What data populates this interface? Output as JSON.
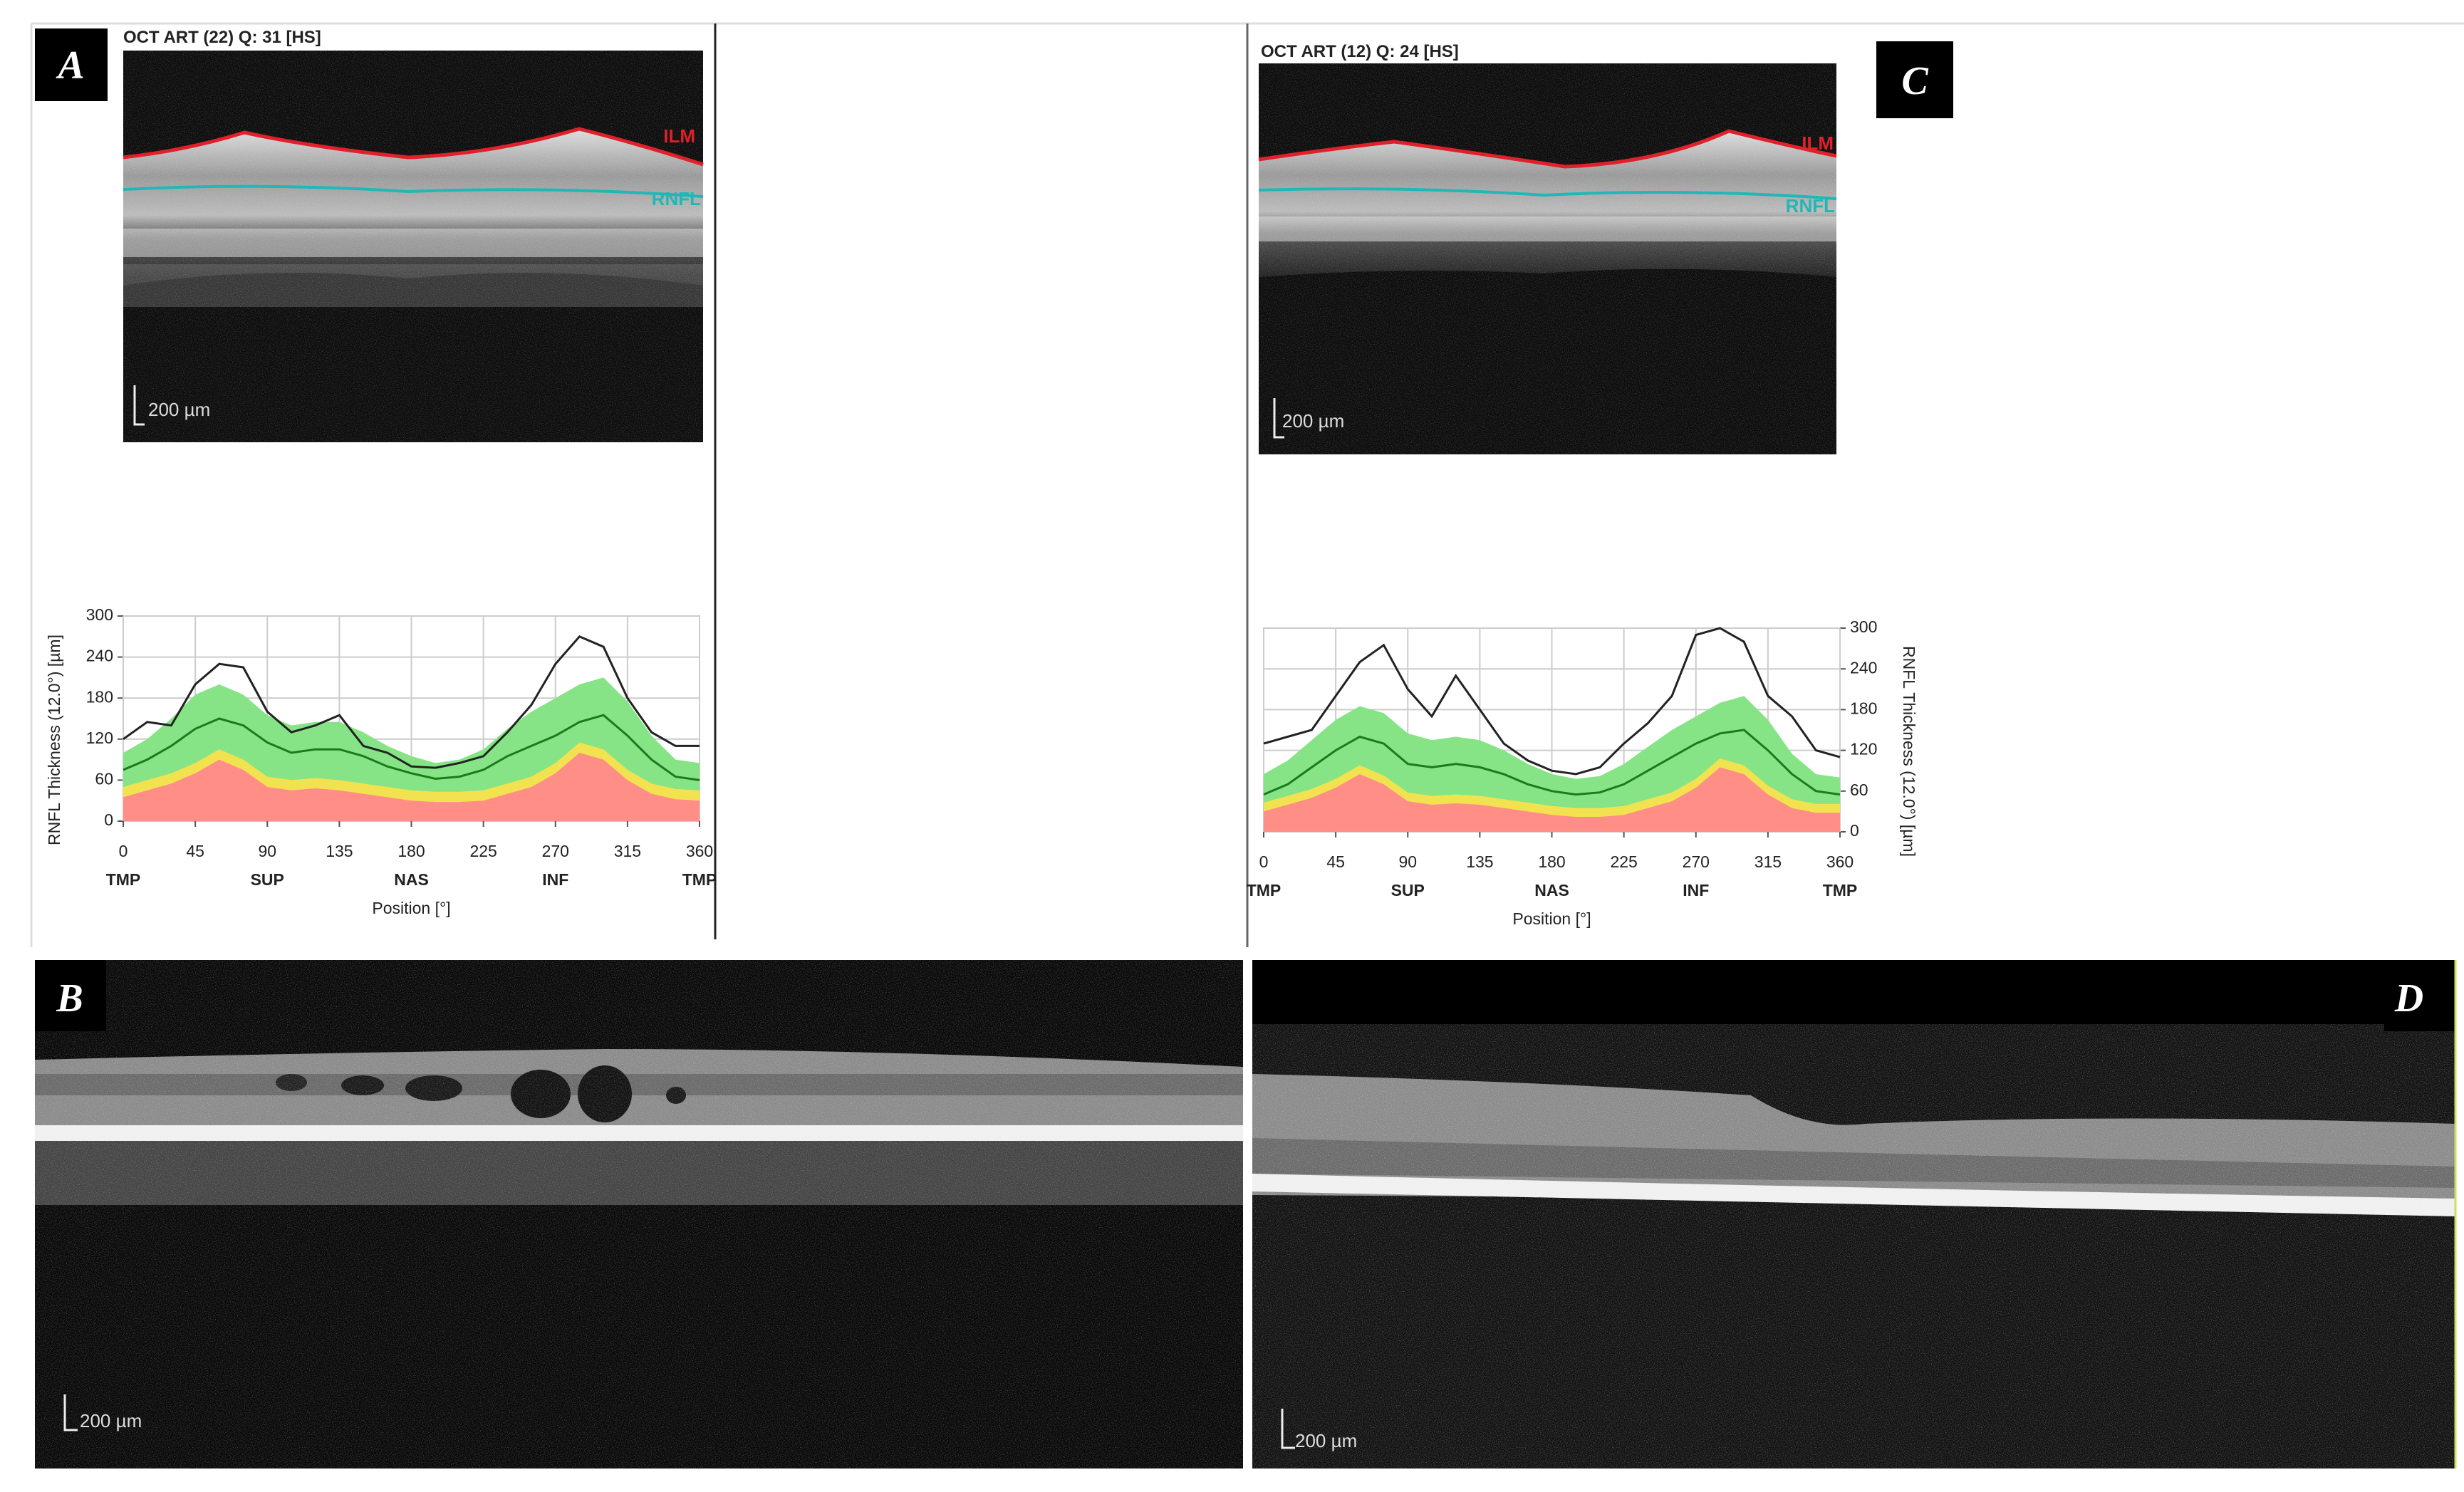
{
  "panels": {
    "A": {
      "label": "A",
      "header": "OCT ART (22) Q: 31 [HS]",
      "ilm": "ILM",
      "rnfl": "RNFL",
      "scale": "200 µm"
    },
    "B": {
      "label": "B",
      "scale": "200 µm"
    },
    "C": {
      "label": "C",
      "header": "OCT ART (12) Q: 24 [HS]",
      "ilm": "ILM",
      "rnfl": "RNFL",
      "scale": "200 µm"
    },
    "D": {
      "label": "D",
      "scale": "200 µm"
    }
  },
  "chart_data": [
    {
      "type": "line",
      "y_label": "RNFL Thickness (12.0°) [µm]",
      "x_label": "Position [°]",
      "y_axis_side": "left",
      "grid": true,
      "x": [
        0,
        15,
        30,
        45,
        60,
        75,
        90,
        105,
        120,
        135,
        150,
        165,
        180,
        195,
        210,
        225,
        240,
        255,
        270,
        285,
        300,
        315,
        330,
        345,
        360
      ],
      "xlim": [
        0,
        360
      ],
      "xticks": [
        0,
        45,
        90,
        135,
        180,
        225,
        270,
        315,
        360
      ],
      "x_regions": [
        {
          "value": 0,
          "label": "TMP"
        },
        {
          "value": 90,
          "label": "SUP"
        },
        {
          "value": 180,
          "label": "NAS"
        },
        {
          "value": 270,
          "label": "INF"
        },
        {
          "value": 360,
          "label": "TMP"
        }
      ],
      "ylim": [
        0,
        300
      ],
      "yticks": [
        0,
        60,
        120,
        180,
        240,
        300
      ],
      "series": [
        {
          "color": "#86e486",
          "fill": true,
          "values": [
            100,
            120,
            150,
            185,
            200,
            185,
            155,
            140,
            145,
            145,
            130,
            110,
            95,
            85,
            90,
            105,
            135,
            160,
            180,
            200,
            210,
            175,
            125,
            90,
            85
          ]
        },
        {
          "color": "#f2e250",
          "fill": true,
          "values": [
            50,
            60,
            70,
            85,
            105,
            90,
            65,
            60,
            63,
            60,
            55,
            50,
            45,
            43,
            43,
            45,
            55,
            65,
            85,
            115,
            105,
            75,
            55,
            47,
            45
          ]
        },
        {
          "color": "#ff8f86",
          "fill": true,
          "values": [
            35,
            45,
            55,
            70,
            90,
            75,
            50,
            45,
            48,
            45,
            40,
            35,
            30,
            28,
            28,
            30,
            40,
            50,
            70,
            100,
            90,
            60,
            40,
            32,
            30
          ]
        },
        {
          "color": "#1c7a1c",
          "fill": false,
          "values": [
            75,
            90,
            110,
            135,
            150,
            140,
            115,
            100,
            105,
            105,
            95,
            80,
            70,
            62,
            65,
            75,
            95,
            110,
            125,
            145,
            155,
            125,
            90,
            65,
            60
          ]
        },
        {
          "color": "#222222",
          "fill": false,
          "values": [
            120,
            145,
            140,
            200,
            230,
            225,
            160,
            130,
            140,
            155,
            110,
            100,
            80,
            78,
            85,
            95,
            130,
            170,
            230,
            270,
            255,
            180,
            130,
            110,
            110
          ]
        }
      ]
    },
    {
      "type": "line",
      "y_label": "RNFL Thickness (12.0°) [µm]",
      "x_label": "Position [°]",
      "y_axis_side": "right",
      "grid": true,
      "x": [
        0,
        15,
        30,
        45,
        60,
        75,
        90,
        105,
        120,
        135,
        150,
        165,
        180,
        195,
        210,
        225,
        240,
        255,
        270,
        285,
        300,
        315,
        330,
        345,
        360
      ],
      "xlim": [
        0,
        360
      ],
      "xticks": [
        0,
        45,
        90,
        135,
        180,
        225,
        270,
        315,
        360
      ],
      "x_regions": [
        {
          "value": 0,
          "label": "TMP"
        },
        {
          "value": 90,
          "label": "SUP"
        },
        {
          "value": 180,
          "label": "NAS"
        },
        {
          "value": 270,
          "label": "INF"
        },
        {
          "value": 360,
          "label": "TMP"
        }
      ],
      "ylim": [
        0,
        300
      ],
      "yticks": [
        0,
        60,
        120,
        180,
        240,
        300
      ],
      "series": [
        {
          "color": "#86e486",
          "fill": true,
          "values": [
            85,
            105,
            135,
            165,
            185,
            175,
            145,
            135,
            140,
            135,
            120,
            100,
            85,
            78,
            82,
            100,
            125,
            150,
            170,
            190,
            200,
            165,
            115,
            85,
            80
          ]
        },
        {
          "color": "#f2e250",
          "fill": true,
          "values": [
            43,
            53,
            63,
            78,
            98,
            83,
            58,
            53,
            55,
            53,
            48,
            43,
            38,
            35,
            35,
            38,
            48,
            58,
            78,
            108,
            98,
            68,
            48,
            41,
            41
          ]
        },
        {
          "color": "#ff8f86",
          "fill": true,
          "values": [
            30,
            40,
            50,
            65,
            85,
            70,
            45,
            40,
            42,
            40,
            35,
            30,
            25,
            22,
            22,
            25,
            35,
            45,
            65,
            95,
            85,
            55,
            35,
            28,
            28
          ]
        },
        {
          "color": "#1c7a1c",
          "fill": false,
          "values": [
            55,
            70,
            95,
            120,
            140,
            130,
            100,
            95,
            100,
            95,
            85,
            70,
            60,
            55,
            58,
            70,
            90,
            110,
            130,
            145,
            150,
            120,
            85,
            60,
            55
          ]
        },
        {
          "color": "#222222",
          "fill": false,
          "values": [
            130,
            140,
            150,
            200,
            250,
            275,
            210,
            170,
            230,
            180,
            130,
            105,
            90,
            85,
            95,
            130,
            160,
            200,
            290,
            300,
            280,
            200,
            170,
            120,
            110
          ]
        }
      ]
    }
  ]
}
